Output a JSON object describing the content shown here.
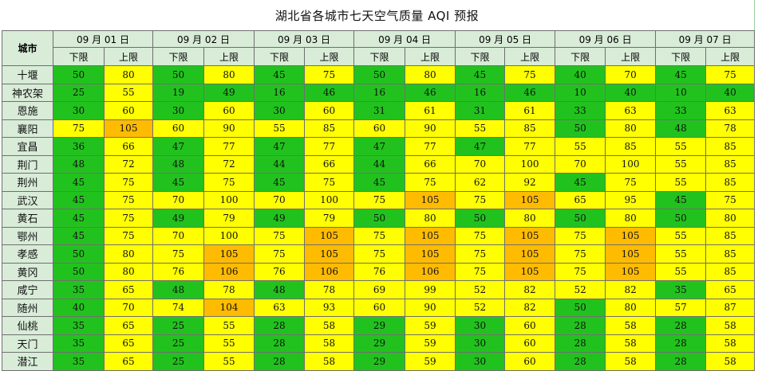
{
  "title": "湖北省各城市七天空气质量 AQI 预报",
  "city_header": "城市",
  "dates": [
    "09 月 01 日",
    "09 月 02 日",
    "09 月 03 日",
    "09 月 04 日",
    "09 月 05 日",
    "09 月 06 日",
    "09 月 07 日"
  ],
  "sub_headers": [
    "下限",
    "上限"
  ],
  "colors": {
    "good": "#22c21e",
    "moderate": "#ffff00",
    "sensitive": "#ffbb00",
    "header_bg": "#d8ecd8"
  },
  "rows": [
    {
      "city": "十堰",
      "values": [
        50,
        80,
        50,
        80,
        45,
        75,
        50,
        80,
        45,
        75,
        40,
        70,
        45,
        75
      ]
    },
    {
      "city": "神农架",
      "values": [
        25,
        55,
        19,
        49,
        16,
        46,
        16,
        46,
        16,
        46,
        10,
        40,
        10,
        40
      ]
    },
    {
      "city": "恩施",
      "values": [
        30,
        60,
        30,
        60,
        30,
        60,
        31,
        61,
        31,
        61,
        33,
        63,
        33,
        63
      ]
    },
    {
      "city": "襄阳",
      "values": [
        75,
        105,
        60,
        90,
        55,
        85,
        60,
        90,
        55,
        85,
        50,
        80,
        48,
        78
      ]
    },
    {
      "city": "宜昌",
      "values": [
        36,
        66,
        47,
        77,
        47,
        77,
        47,
        77,
        47,
        77,
        55,
        85,
        55,
        85
      ]
    },
    {
      "city": "荆门",
      "values": [
        48,
        72,
        48,
        72,
        44,
        66,
        44,
        66,
        70,
        100,
        70,
        100,
        55,
        85
      ]
    },
    {
      "city": "荆州",
      "values": [
        45,
        75,
        45,
        75,
        45,
        75,
        45,
        75,
        62,
        92,
        45,
        75,
        55,
        85
      ]
    },
    {
      "city": "武汉",
      "values": [
        45,
        75,
        70,
        100,
        70,
        100,
        75,
        105,
        75,
        105,
        65,
        95,
        45,
        75
      ]
    },
    {
      "city": "黄石",
      "values": [
        45,
        75,
        49,
        79,
        49,
        79,
        50,
        80,
        50,
        80,
        50,
        80,
        50,
        80
      ]
    },
    {
      "city": "鄂州",
      "values": [
        45,
        75,
        70,
        100,
        75,
        105,
        75,
        105,
        75,
        105,
        75,
        105,
        55,
        85
      ]
    },
    {
      "city": "孝感",
      "values": [
        50,
        80,
        75,
        105,
        75,
        105,
        75,
        105,
        75,
        105,
        75,
        105,
        55,
        85
      ]
    },
    {
      "city": "黄冈",
      "values": [
        50,
        80,
        76,
        106,
        76,
        106,
        76,
        106,
        75,
        105,
        75,
        105,
        55,
        85
      ]
    },
    {
      "city": "咸宁",
      "values": [
        35,
        65,
        48,
        78,
        48,
        78,
        69,
        99,
        52,
        82,
        52,
        82,
        35,
        65
      ]
    },
    {
      "city": "随州",
      "values": [
        40,
        70,
        74,
        104,
        63,
        93,
        60,
        90,
        52,
        82,
        50,
        80,
        57,
        87
      ]
    },
    {
      "city": "仙桃",
      "values": [
        35,
        65,
        25,
        55,
        28,
        58,
        29,
        59,
        30,
        60,
        28,
        58,
        28,
        58
      ]
    },
    {
      "city": "天门",
      "values": [
        35,
        65,
        25,
        55,
        28,
        58,
        29,
        59,
        30,
        60,
        28,
        58,
        28,
        58
      ]
    },
    {
      "city": "潜江",
      "values": [
        35,
        65,
        25,
        55,
        28,
        58,
        29,
        59,
        30,
        60,
        28,
        58,
        28,
        58
      ]
    }
  ],
  "cell_levels": [
    [
      "g",
      "y",
      "g",
      "y",
      "g",
      "y",
      "g",
      "y",
      "g",
      "y",
      "g",
      "y",
      "g",
      "y"
    ],
    [
      "g",
      "y",
      "g",
      "g",
      "g",
      "g",
      "g",
      "g",
      "g",
      "g",
      "g",
      "g",
      "g",
      "g"
    ],
    [
      "g",
      "y",
      "g",
      "y",
      "g",
      "y",
      "g",
      "y",
      "g",
      "y",
      "g",
      "y",
      "g",
      "y"
    ],
    [
      "y",
      "o",
      "y",
      "y",
      "y",
      "y",
      "y",
      "y",
      "y",
      "y",
      "g",
      "y",
      "g",
      "y"
    ],
    [
      "g",
      "y",
      "g",
      "y",
      "g",
      "y",
      "g",
      "y",
      "g",
      "y",
      "y",
      "y",
      "y",
      "y"
    ],
    [
      "g",
      "y",
      "g",
      "y",
      "g",
      "y",
      "g",
      "y",
      "y",
      "y",
      "y",
      "y",
      "y",
      "y"
    ],
    [
      "g",
      "y",
      "g",
      "y",
      "g",
      "y",
      "g",
      "y",
      "y",
      "y",
      "g",
      "y",
      "y",
      "y"
    ],
    [
      "g",
      "y",
      "y",
      "y",
      "y",
      "y",
      "y",
      "o",
      "y",
      "o",
      "y",
      "y",
      "g",
      "y"
    ],
    [
      "g",
      "y",
      "g",
      "y",
      "g",
      "y",
      "g",
      "y",
      "g",
      "y",
      "g",
      "y",
      "g",
      "y"
    ],
    [
      "g",
      "y",
      "y",
      "y",
      "y",
      "o",
      "y",
      "o",
      "y",
      "o",
      "y",
      "o",
      "y",
      "y"
    ],
    [
      "g",
      "y",
      "y",
      "o",
      "y",
      "o",
      "y",
      "o",
      "y",
      "o",
      "y",
      "o",
      "y",
      "y"
    ],
    [
      "g",
      "y",
      "y",
      "o",
      "y",
      "o",
      "y",
      "o",
      "y",
      "o",
      "y",
      "o",
      "y",
      "y"
    ],
    [
      "g",
      "y",
      "g",
      "y",
      "g",
      "y",
      "y",
      "y",
      "y",
      "y",
      "y",
      "y",
      "g",
      "y"
    ],
    [
      "g",
      "y",
      "y",
      "o",
      "y",
      "y",
      "y",
      "y",
      "y",
      "y",
      "g",
      "y",
      "y",
      "y"
    ],
    [
      "g",
      "y",
      "g",
      "y",
      "g",
      "y",
      "g",
      "y",
      "g",
      "y",
      "g",
      "y",
      "g",
      "y"
    ],
    [
      "g",
      "y",
      "g",
      "y",
      "g",
      "y",
      "g",
      "y",
      "g",
      "y",
      "g",
      "y",
      "g",
      "y"
    ],
    [
      "g",
      "y",
      "g",
      "y",
      "g",
      "y",
      "g",
      "y",
      "g",
      "y",
      "g",
      "y",
      "g",
      "y"
    ]
  ]
}
